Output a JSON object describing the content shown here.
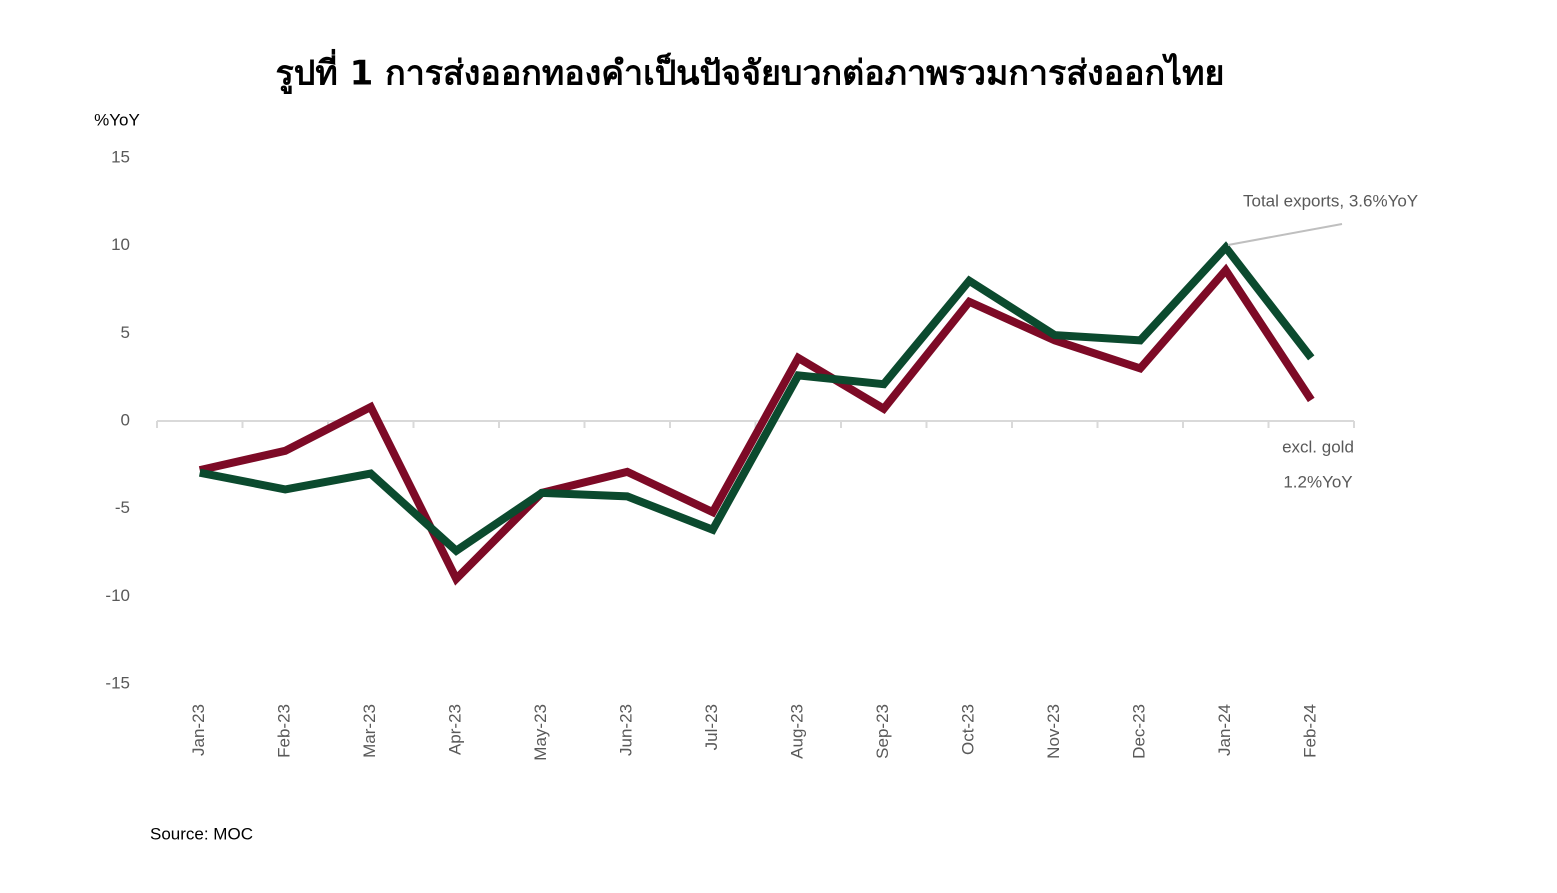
{
  "chart_data": {
    "type": "line",
    "title": "รูปที่ 1 การส่งออกทองคำเป็นปัจจัยบวกต่อภาพรวมการส่งออกไทย",
    "y_label": "%YoY",
    "categories": [
      "Jan-23",
      "Feb-23",
      "Mar-23",
      "Apr-23",
      "May-23",
      "Jun-23",
      "Jul-23",
      "Aug-23",
      "Sep-23",
      "Oct-23",
      "Nov-23",
      "Dec-23",
      "Jan-24",
      "Feb-24"
    ],
    "series": [
      {
        "color": "#7d0a26",
        "values": [
          -2.8,
          -1.7,
          0.8,
          -9.0,
          -4.1,
          -2.9,
          -5.2,
          3.6,
          0.7,
          6.8,
          4.6,
          3.0,
          8.6,
          1.2
        ]
      },
      {
        "color": "#0b4a2e",
        "values": [
          -2.95,
          -3.9,
          -3.0,
          -7.4,
          -4.1,
          -4.3,
          -6.2,
          2.6,
          2.1,
          8.0,
          4.9,
          4.6,
          9.9,
          3.6
        ]
      }
    ],
    "ylim": [
      -15,
      15
    ],
    "yticks": [
      -15,
      -10,
      -5,
      0,
      5,
      10,
      15
    ],
    "annotations": [
      "Total exports, 3.6%YoY",
      "excl. gold",
      "1.2%YoY"
    ],
    "source": "Source:  MOC"
  }
}
